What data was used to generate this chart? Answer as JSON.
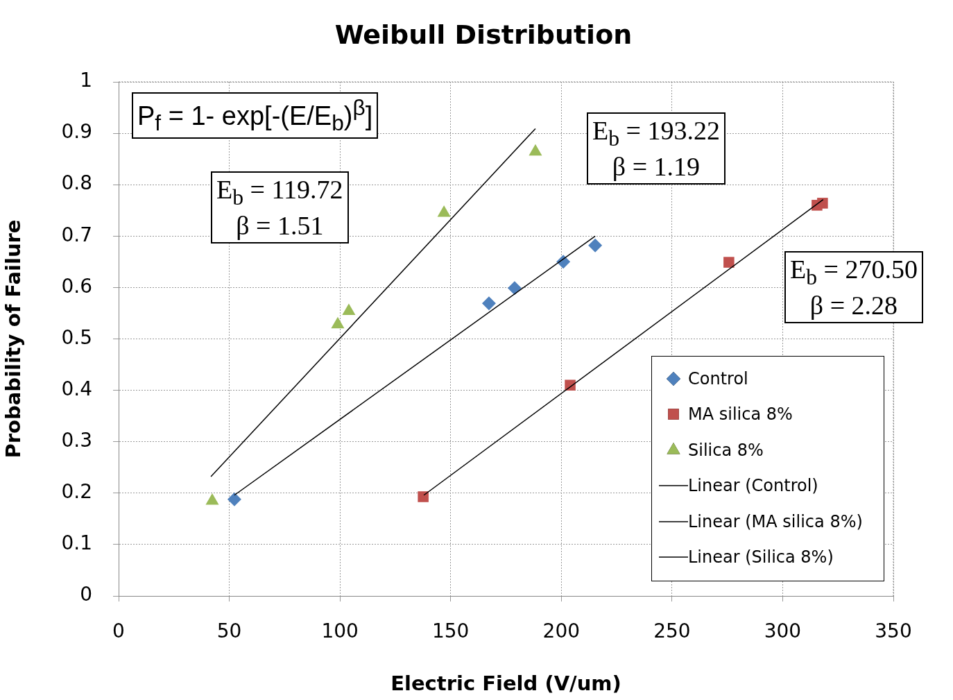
{
  "chart_data": {
    "type": "scatter",
    "title": "Weibull Distribution",
    "xlabel": "Electric Field (V/um)",
    "ylabel": "Probability of Failure",
    "xlim": [
      0,
      350
    ],
    "xticks": [
      0,
      50,
      100,
      150,
      200,
      250,
      300,
      350
    ],
    "ylim": [
      0,
      1
    ],
    "yticks": [
      0,
      0.1,
      0.2,
      0.3,
      0.4,
      0.5,
      0.6,
      0.7,
      0.8,
      0.9,
      1
    ],
    "grid": true,
    "legend": "bottom right",
    "series": [
      {
        "name": "Control",
        "type": "scatter",
        "marker": "diamond",
        "color": "#4f81bd",
        "x": [
          52.3,
          167.3,
          178.9,
          200.9,
          215.3
        ],
        "values": [
          0.188,
          0.569,
          0.599,
          0.65,
          0.682
        ]
      },
      {
        "name": "MA silica 8%",
        "type": "scatter",
        "marker": "square",
        "color": "#c0504d",
        "x": [
          137.6,
          204,
          275.7,
          315.5,
          318
        ],
        "values": [
          0.193,
          0.41,
          0.649,
          0.76,
          0.764
        ]
      },
      {
        "name": "Silica 8%",
        "type": "scatter",
        "marker": "triangle",
        "color": "#9bbb59",
        "x": [
          42.3,
          99,
          104,
          147,
          188.3
        ],
        "values": [
          0.185,
          0.528,
          0.554,
          0.745,
          0.864
        ]
      },
      {
        "name": "Linear (Control)",
        "type": "line",
        "marker": "none",
        "color": "#000000",
        "x": [
          52.3,
          215.3
        ],
        "values": [
          0.196,
          0.7
        ]
      },
      {
        "name": "Linear (MA silica 8%)",
        "type": "line",
        "marker": "none",
        "color": "#000000",
        "x": [
          137.9,
          318.3
        ],
        "values": [
          0.196,
          0.771
        ]
      },
      {
        "name": "Linear (Silica 8%)",
        "type": "line",
        "marker": "none",
        "color": "#000000",
        "x": [
          41.7,
          188.3
        ],
        "values": [
          0.232,
          0.909
        ]
      }
    ],
    "annotations": [
      "P$_{f}$ = 1- exp[-(E/E$_{b}$)$^{β}$]",
      "E$_{b}$ = 119.72\nβ = 1.51",
      "E$_{b}$ = 193.22\nβ = 1.19",
      "E$_{b}$ = 270.50\nβ = 2.28"
    ]
  }
}
